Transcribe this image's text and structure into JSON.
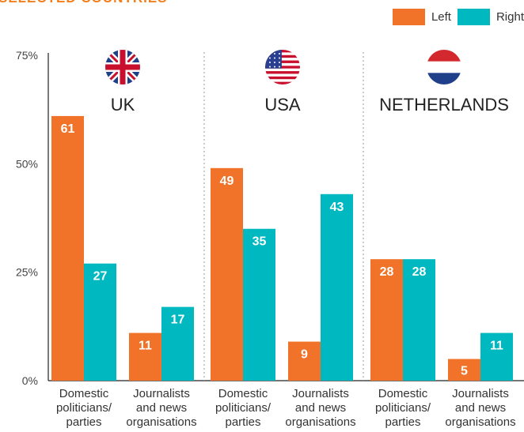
{
  "header": {
    "title": "SELECTED COUNTRIES"
  },
  "colors": {
    "left": "#f07329",
    "right": "#00b8bf",
    "divider": "#9a9a9a",
    "axis": "#222222"
  },
  "chart_data": {
    "type": "bar",
    "title": "SELECTED COUNTRIES",
    "xlabel": "",
    "ylabel": "",
    "ylim": [
      0,
      75
    ],
    "yticks": [
      "0%",
      "25%",
      "50%",
      "75%"
    ],
    "legend": {
      "position": "top-right",
      "entries": [
        "Left",
        "Right"
      ]
    },
    "groups": [
      {
        "country": "UK",
        "flag": "uk-flag-icon",
        "categories": [
          [
            "Domestic",
            "politicians/",
            "parties"
          ],
          [
            "Journalists",
            "and news",
            "organisations"
          ]
        ],
        "series": [
          {
            "name": "Left",
            "values": [
              61,
              11
            ]
          },
          {
            "name": "Right",
            "values": [
              27,
              17
            ]
          }
        ]
      },
      {
        "country": "USA",
        "flag": "us-flag-icon",
        "categories": [
          [
            "Domestic",
            "politicians/",
            "parties"
          ],
          [
            "Journalists",
            "and news",
            "organisations"
          ]
        ],
        "series": [
          {
            "name": "Left",
            "values": [
              49,
              9
            ]
          },
          {
            "name": "Right",
            "values": [
              35,
              43
            ]
          }
        ]
      },
      {
        "country": "NETHERLANDS",
        "flag": "netherlands-flag-icon",
        "categories": [
          [
            "Domestic",
            "politicians/",
            "parties"
          ],
          [
            "Journalists",
            "and news",
            "organisations"
          ]
        ],
        "series": [
          {
            "name": "Left",
            "values": [
              28,
              5
            ]
          },
          {
            "name": "Right",
            "values": [
              28,
              11
            ]
          }
        ]
      }
    ]
  }
}
